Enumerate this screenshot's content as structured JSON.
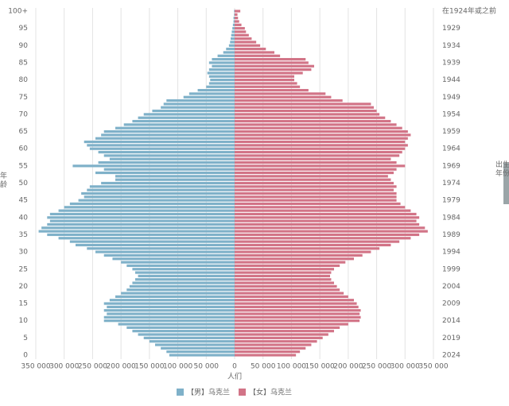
{
  "chart_data": {
    "type": "population-pyramid",
    "y_label": "年龄",
    "y2_label": "出生年份",
    "x_label": "人们",
    "categories": [
      "0",
      null,
      null,
      null,
      null,
      "5",
      null,
      null,
      null,
      null,
      "10",
      null,
      null,
      null,
      null,
      "15",
      null,
      null,
      null,
      null,
      "20",
      null,
      null,
      null,
      null,
      "25",
      null,
      null,
      null,
      null,
      "30",
      null,
      null,
      null,
      null,
      "35",
      null,
      null,
      null,
      null,
      "40",
      null,
      null,
      null,
      null,
      "45",
      null,
      null,
      null,
      null,
      "50",
      null,
      null,
      null,
      null,
      "55",
      null,
      null,
      null,
      null,
      "60",
      null,
      null,
      null,
      null,
      "65",
      null,
      null,
      null,
      null,
      "70",
      null,
      null,
      null,
      null,
      "75",
      null,
      null,
      null,
      null,
      "80",
      null,
      null,
      null,
      null,
      "85",
      null,
      null,
      null,
      null,
      "90",
      null,
      null,
      null,
      null,
      "95",
      null,
      null,
      null,
      null,
      "100+"
    ],
    "birth_years": [
      "2024",
      null,
      null,
      null,
      null,
      "2019",
      null,
      null,
      null,
      null,
      "2014",
      null,
      null,
      null,
      null,
      "2009",
      null,
      null,
      null,
      null,
      "2004",
      null,
      null,
      null,
      null,
      "1999",
      null,
      null,
      null,
      null,
      "1994",
      null,
      null,
      null,
      null,
      "1989",
      null,
      null,
      null,
      null,
      "1984",
      null,
      null,
      null,
      null,
      "1979",
      null,
      null,
      null,
      null,
      "1974",
      null,
      null,
      null,
      null,
      "1969",
      null,
      null,
      null,
      null,
      "1964",
      null,
      null,
      null,
      null,
      "1959",
      null,
      null,
      null,
      null,
      "1954",
      null,
      null,
      null,
      null,
      "1949",
      null,
      null,
      null,
      null,
      "1944",
      null,
      null,
      null,
      null,
      "1939",
      null,
      null,
      null,
      null,
      "1934",
      null,
      null,
      null,
      null,
      "1929",
      null,
      null,
      null,
      null,
      "在1924年或之前"
    ],
    "xlim": [
      -350000,
      350000
    ],
    "xticks": [
      {
        "value": -350000,
        "label": "350 000"
      },
      {
        "value": -300000,
        "label": "300 000"
      },
      {
        "value": -250000,
        "label": "250 000"
      },
      {
        "value": -200000,
        "label": "200 000"
      },
      {
        "value": -150000,
        "label": "150 000"
      },
      {
        "value": -100000,
        "label": "100 000"
      },
      {
        "value": -50000,
        "label": "50 000"
      },
      0,
      {
        "value": 50000,
        "label": "50 000"
      },
      {
        "value": 100000,
        "label": "100 000"
      },
      {
        "value": 150000,
        "label": "150 000"
      },
      {
        "value": 200000,
        "label": "200 000"
      },
      {
        "value": 250000,
        "label": "250 000"
      },
      {
        "value": 300000,
        "label": "300 000"
      },
      {
        "value": 350000,
        "label": "350 000"
      }
    ],
    "grid": true,
    "series": [
      {
        "name": "【男】乌克兰",
        "color": "#7fb1c9",
        "side": "left",
        "values": [
          115000,
          120000,
          130000,
          140000,
          150000,
          160000,
          170000,
          180000,
          190000,
          205000,
          230000,
          230000,
          225000,
          230000,
          225000,
          230000,
          220000,
          210000,
          200000,
          190000,
          185000,
          180000,
          175000,
          170000,
          175000,
          180000,
          190000,
          200000,
          215000,
          230000,
          245000,
          260000,
          280000,
          290000,
          310000,
          330000,
          345000,
          340000,
          330000,
          325000,
          330000,
          325000,
          310000,
          300000,
          290000,
          275000,
          265000,
          270000,
          260000,
          255000,
          235000,
          210000,
          210000,
          245000,
          230000,
          285000,
          240000,
          220000,
          230000,
          240000,
          255000,
          260000,
          265000,
          245000,
          235000,
          230000,
          210000,
          195000,
          180000,
          170000,
          160000,
          145000,
          130000,
          125000,
          120000,
          90000,
          80000,
          65000,
          50000,
          45000,
          43000,
          45000,
          48000,
          45000,
          40000,
          45000,
          40000,
          30000,
          20000,
          15000,
          10000,
          8000,
          7000,
          6000,
          5000,
          4000,
          3000,
          2000,
          2000,
          1000,
          1000
        ]
      },
      {
        "name": "【女】乌克兰",
        "color": "#d27487",
        "side": "right",
        "values": [
          108000,
          115000,
          125000,
          135000,
          145000,
          155000,
          165000,
          175000,
          185000,
          200000,
          220000,
          222000,
          220000,
          222000,
          218000,
          215000,
          210000,
          200000,
          192000,
          185000,
          180000,
          175000,
          170000,
          168000,
          170000,
          175000,
          185000,
          195000,
          210000,
          225000,
          240000,
          255000,
          275000,
          290000,
          310000,
          325000,
          340000,
          335000,
          325000,
          320000,
          325000,
          320000,
          310000,
          300000,
          292000,
          285000,
          285000,
          285000,
          280000,
          285000,
          280000,
          275000,
          270000,
          280000,
          285000,
          300000,
          285000,
          275000,
          290000,
          295000,
          300000,
          305000,
          300000,
          305000,
          310000,
          305000,
          295000,
          285000,
          275000,
          265000,
          255000,
          250000,
          245000,
          240000,
          190000,
          170000,
          160000,
          130000,
          115000,
          110000,
          105000,
          105000,
          120000,
          135000,
          140000,
          130000,
          125000,
          80000,
          70000,
          55000,
          45000,
          38000,
          30000,
          25000,
          20000,
          18000,
          12000,
          8000,
          6000,
          5000,
          10000
        ]
      }
    ]
  }
}
